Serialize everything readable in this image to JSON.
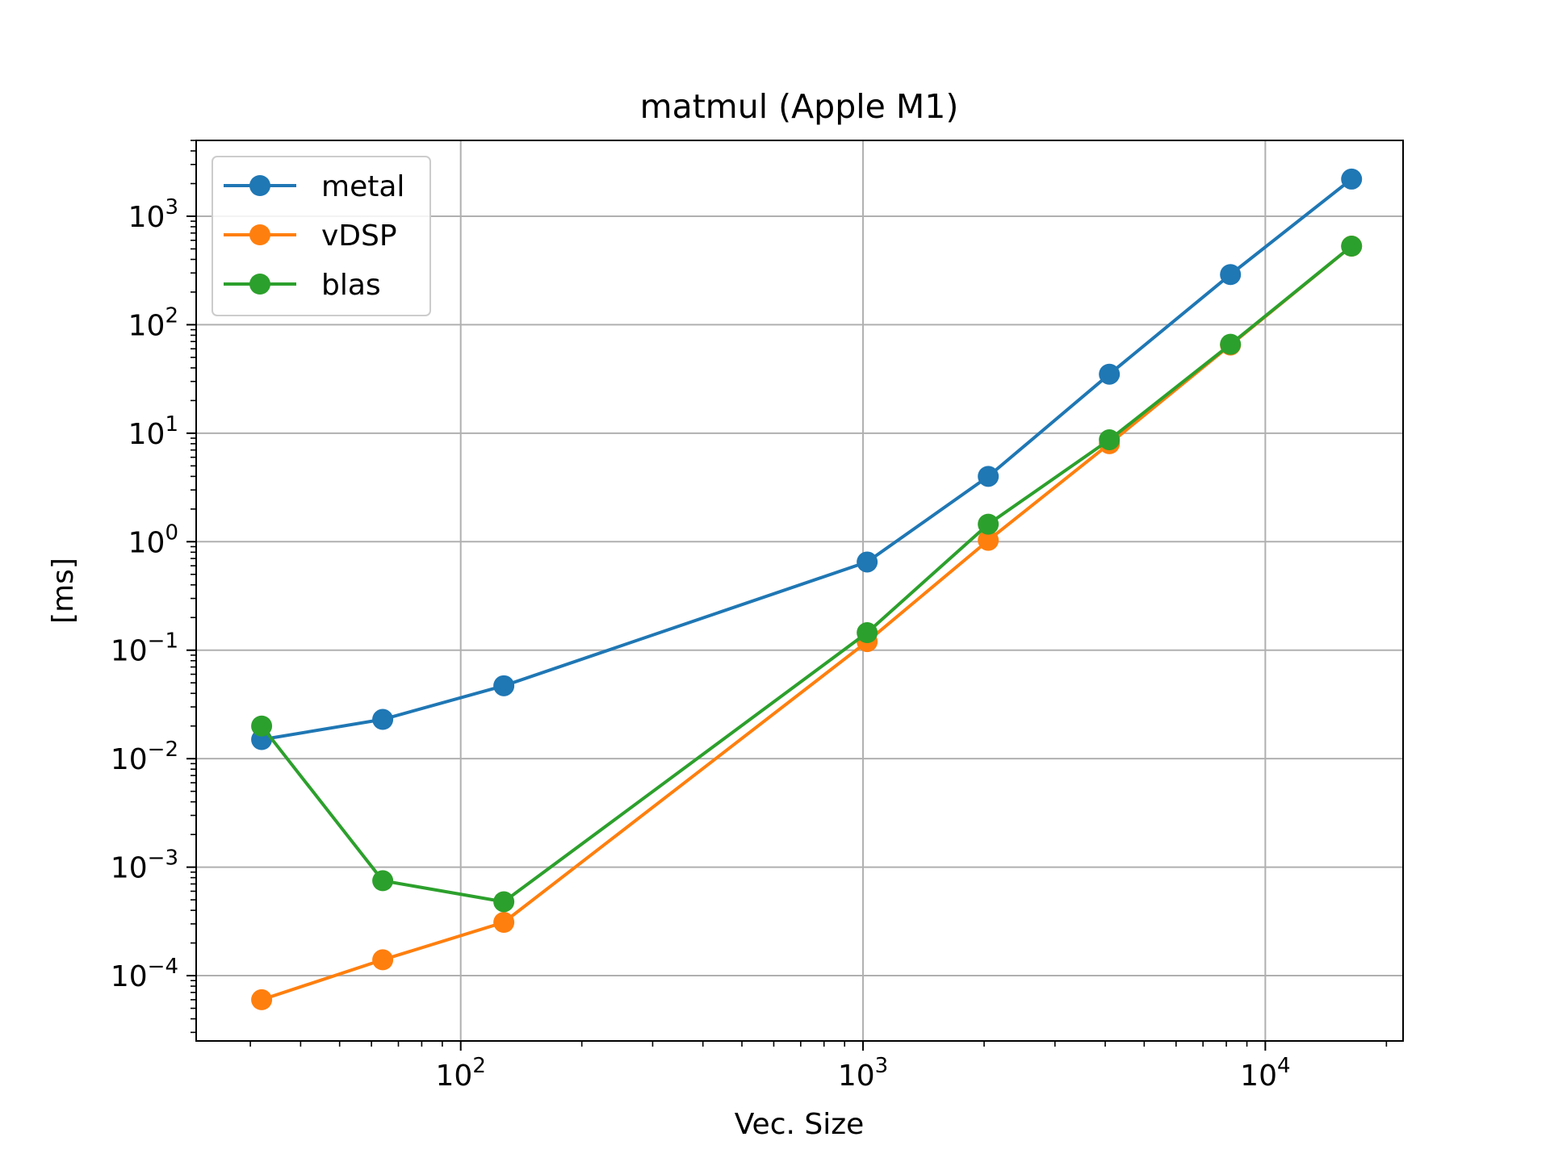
{
  "chart_data": {
    "type": "line",
    "title": "matmul (Apple M1)",
    "xlabel": "Vec. Size",
    "ylabel": "[ms]",
    "xscale": "log",
    "yscale": "log",
    "xlim": [
      22,
      22000
    ],
    "ylim": [
      2.5e-05,
      5000
    ],
    "grid": true,
    "legend": "top-left",
    "x_ticks": [
      {
        "value": 100,
        "base": "10",
        "exp": "2"
      },
      {
        "value": 1000,
        "base": "10",
        "exp": "3"
      },
      {
        "value": 10000,
        "base": "10",
        "exp": "4"
      }
    ],
    "y_ticks": [
      {
        "value": 0.0001,
        "base": "10",
        "exp": "−4"
      },
      {
        "value": 0.001,
        "base": "10",
        "exp": "−3"
      },
      {
        "value": 0.01,
        "base": "10",
        "exp": "−2"
      },
      {
        "value": 0.1,
        "base": "10",
        "exp": "−1"
      },
      {
        "value": 1,
        "base": "10",
        "exp": "0"
      },
      {
        "value": 10,
        "base": "10",
        "exp": "1"
      },
      {
        "value": 100,
        "base": "10",
        "exp": "2"
      },
      {
        "value": 1000,
        "base": "10",
        "exp": "3"
      }
    ],
    "x": [
      32,
      64,
      128,
      1024,
      2048,
      4096,
      8192,
      16384
    ],
    "series": [
      {
        "name": "metal",
        "color": "#1f77b4",
        "values": [
          0.015,
          0.023,
          0.047,
          0.65,
          4.0,
          35,
          290,
          2200
        ]
      },
      {
        "name": "vDSP",
        "color": "#ff7f0e",
        "values": [
          6e-05,
          0.00014,
          0.00031,
          0.12,
          1.03,
          8.0,
          65,
          530
        ]
      },
      {
        "name": "blas",
        "color": "#2ca02c",
        "values": [
          0.02,
          0.00075,
          0.00048,
          0.145,
          1.45,
          8.7,
          66,
          530
        ]
      }
    ]
  }
}
